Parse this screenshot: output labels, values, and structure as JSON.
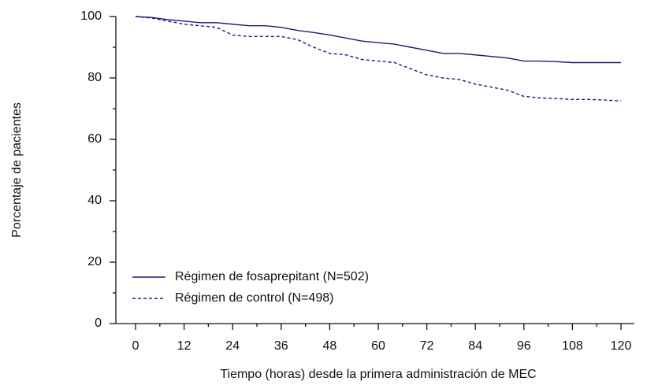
{
  "chart_data": {
    "type": "line",
    "xlabel": "Tiempo (horas) desde la primera administración de MEC",
    "ylabel": "Porcentaje de pacientes",
    "x": [
      0,
      4,
      8,
      12,
      16,
      20,
      24,
      28,
      32,
      36,
      40,
      44,
      48,
      52,
      56,
      60,
      64,
      68,
      72,
      76,
      80,
      84,
      88,
      92,
      96,
      100,
      104,
      108,
      112,
      116,
      120
    ],
    "series": [
      {
        "name": "Régimen de fosaprepitant (N=502)",
        "color": "#1c1c78",
        "dash": "solid",
        "values": [
          100,
          99.7,
          99,
          98.5,
          98,
          98,
          97.5,
          97,
          97,
          96.5,
          95.5,
          94.8,
          94,
          93,
          92,
          91.5,
          91,
          90,
          89,
          88,
          88,
          87.5,
          87,
          86.5,
          85.5,
          85.5,
          85.3,
          85,
          85,
          85,
          85
        ]
      },
      {
        "name": "Régimen de control (N=498)",
        "color": "#1c1c78",
        "dash": "dashed",
        "values": [
          100,
          99.5,
          98.5,
          97.5,
          97,
          96.5,
          94,
          93.5,
          93.5,
          93.5,
          92.5,
          90,
          88,
          87.5,
          86,
          85.5,
          85,
          83,
          81,
          80,
          79.5,
          78,
          77,
          76,
          74,
          73.5,
          73.3,
          73,
          73,
          72.8,
          72.5
        ]
      }
    ],
    "xlim": [
      0,
      120
    ],
    "xticks": [
      0,
      12,
      24,
      36,
      48,
      60,
      72,
      84,
      96,
      108,
      120
    ],
    "ylim": [
      0,
      100
    ],
    "yticks": [
      0,
      20,
      40,
      60,
      80,
      100
    ],
    "legend": "lower left"
  }
}
